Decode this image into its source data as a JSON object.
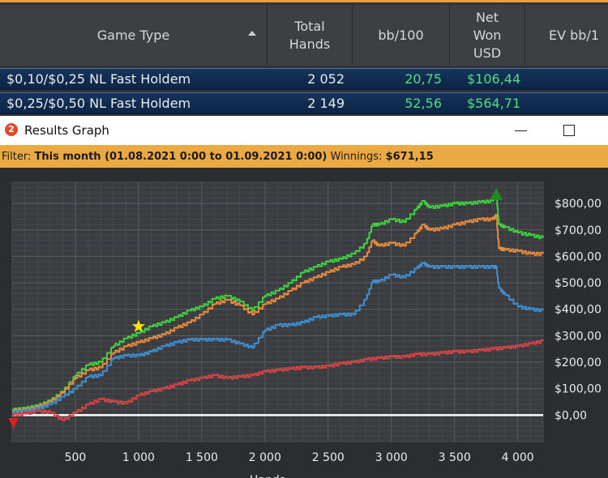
{
  "table": {
    "headers": {
      "game_type": "Game Type",
      "total_hands_1": "Total",
      "total_hands_2": "Hands",
      "bb100": "bb/100",
      "net_won_1": "Net",
      "net_won_2": "Won",
      "net_won_3": "USD",
      "ev": "EV bb/1"
    },
    "rows": [
      {
        "game": "$0,10/$0,25 NL Fast Holdem",
        "hands": "2 052",
        "bb100": "20,75",
        "net_won": "$106,44"
      },
      {
        "game": "$0,25/$0,50 NL Fast Holdem",
        "hands": "2 149",
        "bb100": "52,56",
        "net_won": "$564,71"
      }
    ]
  },
  "window": {
    "icon_text": "2",
    "title": "Results Graph"
  },
  "filter": {
    "label": "Filter:",
    "value": "This month (01.08.2021 0:00 to 01.09.2021 0:00)",
    "winnings_label": "Winnings:",
    "winnings_value": "$671,15"
  },
  "colors": {
    "green": "#3fd23f",
    "orange": "#e88b3c",
    "blue": "#3f8fd0",
    "red": "#d64545",
    "zero_line": "#ffffff",
    "accent": "#eba944"
  },
  "chart_data": {
    "type": "line",
    "xlabel": "Hands",
    "ylabel": "",
    "xlim": [
      0,
      4201
    ],
    "ylim": [
      -100,
      880
    ],
    "x_ticks": [
      500,
      1000,
      1500,
      2000,
      2500,
      3000,
      3500,
      4000
    ],
    "x_tick_labels": [
      "500",
      "1 000",
      "1 500",
      "2 000",
      "2 500",
      "3 000",
      "3 500",
      "4 000"
    ],
    "y_ticks": [
      0,
      100,
      200,
      300,
      400,
      500,
      600,
      700,
      800
    ],
    "y_tick_labels": [
      "$0,00",
      "$100,00",
      "$200,00",
      "$300,00",
      "$400,00",
      "$500,00",
      "$600,00",
      "$700,00",
      "$800,00"
    ],
    "grid": true,
    "markers": [
      {
        "type": "star",
        "color": "#ffe400",
        "x": 1000,
        "y": 335
      },
      {
        "type": "triangle-up",
        "color": "#1f8a1f",
        "x": 3830,
        "y": 835
      },
      {
        "type": "triangle-down",
        "color": "#e02020",
        "x": 10,
        "y": -30
      }
    ],
    "series": [
      {
        "color": "#3fd23f",
        "x": [
          0,
          100,
          200,
          300,
          400,
          500,
          600,
          700,
          800,
          900,
          1000,
          1100,
          1200,
          1300,
          1400,
          1500,
          1600,
          1700,
          1800,
          1900,
          2000,
          2100,
          2200,
          2300,
          2400,
          2500,
          2600,
          2700,
          2800,
          2850,
          2900,
          3000,
          3100,
          3200,
          3250,
          3300,
          3400,
          3500,
          3600,
          3700,
          3800,
          3830,
          3850,
          3900,
          4000,
          4100,
          4200
        ],
        "y": [
          20,
          25,
          35,
          55,
          90,
          150,
          190,
          200,
          260,
          290,
          310,
          335,
          350,
          370,
          395,
          410,
          440,
          450,
          430,
          395,
          450,
          470,
          500,
          540,
          560,
          580,
          590,
          610,
          650,
          720,
          720,
          740,
          730,
          780,
          810,
          785,
          790,
          800,
          800,
          805,
          810,
          835,
          720,
          710,
          690,
          680,
          670
        ]
      },
      {
        "color": "#e88b3c",
        "x": [
          0,
          100,
          200,
          300,
          400,
          500,
          600,
          700,
          800,
          900,
          1000,
          1100,
          1200,
          1300,
          1400,
          1500,
          1600,
          1700,
          1800,
          1900,
          2000,
          2100,
          2200,
          2300,
          2400,
          2500,
          2600,
          2700,
          2800,
          2850,
          2900,
          3000,
          3100,
          3200,
          3250,
          3300,
          3400,
          3500,
          3600,
          3700,
          3800,
          3830,
          3850,
          3900,
          4000,
          4100,
          4200
        ],
        "y": [
          15,
          20,
          30,
          50,
          85,
          140,
          170,
          180,
          235,
          260,
          275,
          290,
          305,
          330,
          350,
          380,
          420,
          435,
          415,
          380,
          420,
          440,
          470,
          500,
          520,
          540,
          560,
          570,
          600,
          660,
          640,
          650,
          640,
          690,
          720,
          700,
          705,
          720,
          730,
          740,
          740,
          755,
          630,
          625,
          620,
          610,
          610
        ]
      },
      {
        "color": "#3f8fd0",
        "x": [
          0,
          100,
          200,
          300,
          400,
          500,
          600,
          700,
          800,
          900,
          1000,
          1100,
          1200,
          1300,
          1400,
          1500,
          1600,
          1700,
          1800,
          1900,
          2000,
          2100,
          2200,
          2300,
          2400,
          2500,
          2600,
          2700,
          2800,
          2850,
          2900,
          3000,
          3100,
          3200,
          3250,
          3300,
          3400,
          3500,
          3600,
          3700,
          3800,
          3830,
          3850,
          3900,
          4000,
          4100,
          4200
        ],
        "y": [
          10,
          15,
          25,
          40,
          70,
          100,
          145,
          150,
          215,
          225,
          225,
          240,
          260,
          275,
          285,
          285,
          285,
          285,
          270,
          255,
          320,
          340,
          340,
          350,
          370,
          375,
          380,
          380,
          440,
          505,
          505,
          530,
          520,
          555,
          575,
          560,
          560,
          560,
          560,
          560,
          560,
          560,
          480,
          455,
          410,
          400,
          395
        ]
      },
      {
        "color": "#d64545",
        "x": [
          0,
          100,
          200,
          300,
          400,
          500,
          600,
          700,
          800,
          900,
          1000,
          1100,
          1200,
          1300,
          1400,
          1500,
          1600,
          1700,
          1800,
          1900,
          2000,
          2100,
          2200,
          2300,
          2400,
          2500,
          2600,
          2700,
          2800,
          2900,
          3000,
          3100,
          3200,
          3300,
          3400,
          3500,
          3600,
          3700,
          3800,
          3900,
          4000,
          4100,
          4200
        ],
        "y": [
          0,
          5,
          15,
          10,
          -20,
          10,
          40,
          60,
          50,
          45,
          75,
          90,
          100,
          115,
          130,
          140,
          150,
          140,
          145,
          150,
          165,
          170,
          175,
          180,
          180,
          185,
          195,
          200,
          210,
          215,
          220,
          220,
          230,
          230,
          235,
          240,
          240,
          245,
          250,
          255,
          260,
          270,
          280
        ]
      }
    ]
  }
}
